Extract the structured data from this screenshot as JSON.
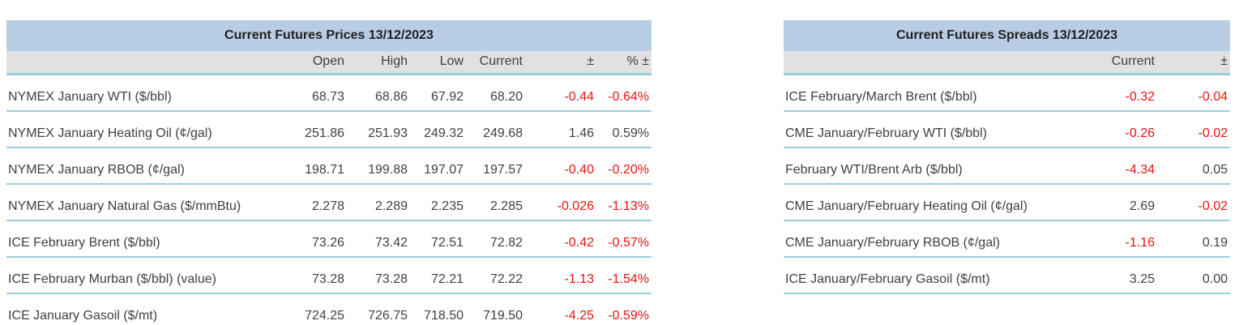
{
  "colors": {
    "title_bg": "#b8cce4",
    "header_bg": "#e1e1e3",
    "row_border": "#99d0d8",
    "negative_value": "#ee1111",
    "text": "#404040"
  },
  "prices_table": {
    "title": "Current Futures Prices 13/12/2023",
    "columns": [
      "",
      "Open",
      "High",
      "Low",
      "Current",
      "±",
      "% ±"
    ],
    "rows": [
      [
        "NYMEX January WTI ($/bbl)",
        "68.73",
        "68.86",
        "67.92",
        "68.20",
        "-0.44",
        "-0.64%"
      ],
      [
        "NYMEX January Heating Oil (¢/gal)",
        "251.86",
        "251.93",
        "249.32",
        "249.68",
        "1.46",
        "0.59%"
      ],
      [
        "NYMEX January RBOB (¢/gal)",
        "198.71",
        "199.88",
        "197.07",
        "197.57",
        "-0.40",
        "-0.20%"
      ],
      [
        "NYMEX January Natural Gas ($/mmBtu)",
        "2.278",
        "2.289",
        "2.235",
        "2.285",
        "-0.026",
        "-1.13%"
      ],
      [
        "ICE February Brent ($/bbl)",
        "73.26",
        "73.42",
        "72.51",
        "72.82",
        "-0.42",
        "-0.57%"
      ],
      [
        "ICE February Murban ($/bbl) (value)",
        "73.28",
        "73.28",
        "72.21",
        "72.22",
        "-1.13",
        "-1.54%"
      ],
      [
        "ICE January Gasoil ($/mt)",
        "724.25",
        "726.75",
        "718.50",
        "719.50",
        "-4.25",
        "-0.59%"
      ]
    ]
  },
  "spreads_table": {
    "title": "Current Futures Spreads 13/12/2023",
    "columns": [
      "",
      "Current",
      "±"
    ],
    "rows": [
      [
        "ICE February/March Brent ($/bbl)",
        "-0.32",
        "-0.04"
      ],
      [
        "CME January/February WTI ($/bbl)",
        "-0.26",
        "-0.02"
      ],
      [
        "February WTI/Brent Arb ($/bbl)",
        "-4.34",
        "0.05"
      ],
      [
        "CME January/February Heating Oil (¢/gal)",
        "2.69",
        "-0.02"
      ],
      [
        "CME January/February RBOB (¢/gal)",
        "-1.16",
        "0.19"
      ],
      [
        "ICE January/February Gasoil ($/mt)",
        "3.25",
        "0.00"
      ]
    ]
  }
}
